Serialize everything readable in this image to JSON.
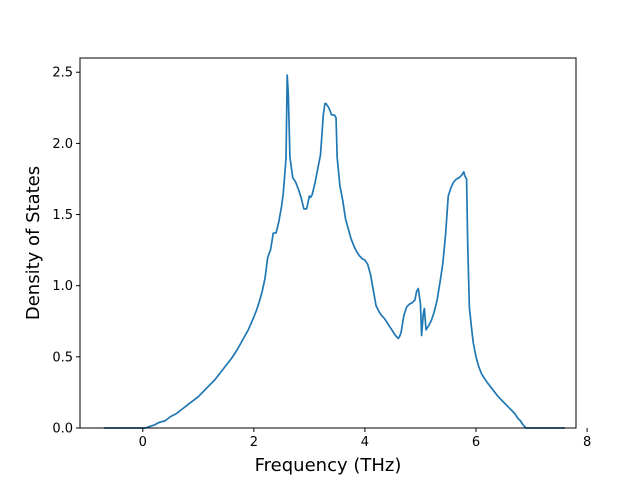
{
  "chart_data": {
    "type": "line",
    "title": "",
    "xlabel": "Frequency (THz)",
    "ylabel": "Density of States",
    "xlim": [
      -1.13,
      7.8
    ],
    "ylim": [
      0.0,
      2.6
    ],
    "xticks": [
      0,
      2,
      4,
      6,
      8
    ],
    "xtick_labels": [
      "0",
      "2",
      "4",
      "6",
      "8"
    ],
    "yticks": [
      0.0,
      0.5,
      1.0,
      1.5,
      2.0,
      2.5
    ],
    "ytick_labels": [
      "0.0",
      "0.5",
      "1.0",
      "1.5",
      "2.0",
      "2.5"
    ],
    "grid": false,
    "legend": "none",
    "series": [
      {
        "color": "#1f77b4",
        "x": [
          -0.7,
          0.05,
          0.12,
          0.2,
          0.3,
          0.4,
          0.5,
          0.6,
          0.7,
          0.8,
          0.9,
          1.0,
          1.1,
          1.2,
          1.3,
          1.4,
          1.5,
          1.6,
          1.7,
          1.8,
          1.9,
          2.0,
          2.05,
          2.1,
          2.15,
          2.2,
          2.25,
          2.3,
          2.35,
          2.4,
          2.45,
          2.5,
          2.53,
          2.56,
          2.58,
          2.6,
          2.62,
          2.65,
          2.7,
          2.75,
          2.8,
          2.85,
          2.9,
          2.95,
          3.0,
          3.02,
          3.05,
          3.1,
          3.15,
          3.2,
          3.25,
          3.28,
          3.3,
          3.35,
          3.4,
          3.45,
          3.48,
          3.5,
          3.55,
          3.6,
          3.65,
          3.7,
          3.75,
          3.8,
          3.85,
          3.9,
          3.95,
          4.0,
          4.05,
          4.1,
          4.15,
          4.2,
          4.25,
          4.3,
          4.35,
          4.4,
          4.45,
          4.5,
          4.55,
          4.6,
          4.62,
          4.65,
          4.7,
          4.75,
          4.8,
          4.85,
          4.9,
          4.93,
          4.96,
          5.0,
          5.02,
          5.05,
          5.07,
          5.1,
          5.15,
          5.2,
          5.25,
          5.3,
          5.35,
          5.4,
          5.45,
          5.5,
          5.55,
          5.6,
          5.65,
          5.7,
          5.75,
          5.78,
          5.8,
          5.83,
          5.85,
          5.88,
          5.92,
          5.95,
          6.0,
          6.05,
          6.1,
          6.2,
          6.3,
          6.4,
          6.5,
          6.6,
          6.7,
          6.75,
          6.8,
          6.85,
          6.9,
          6.92,
          7.0,
          7.6
        ],
        "y": [
          0.0,
          0.0,
          0.01,
          0.02,
          0.04,
          0.05,
          0.08,
          0.1,
          0.13,
          0.16,
          0.19,
          0.22,
          0.26,
          0.3,
          0.34,
          0.39,
          0.44,
          0.49,
          0.55,
          0.62,
          0.69,
          0.78,
          0.83,
          0.89,
          0.96,
          1.05,
          1.2,
          1.25,
          1.37,
          1.37,
          1.45,
          1.56,
          1.65,
          1.8,
          1.9,
          2.48,
          2.35,
          1.9,
          1.76,
          1.73,
          1.68,
          1.62,
          1.54,
          1.54,
          1.63,
          1.62,
          1.64,
          1.72,
          1.82,
          1.92,
          2.2,
          2.28,
          2.28,
          2.25,
          2.2,
          2.2,
          2.18,
          1.9,
          1.7,
          1.6,
          1.47,
          1.4,
          1.33,
          1.28,
          1.24,
          1.21,
          1.19,
          1.18,
          1.15,
          1.08,
          0.97,
          0.86,
          0.82,
          0.79,
          0.77,
          0.74,
          0.71,
          0.68,
          0.65,
          0.63,
          0.64,
          0.67,
          0.79,
          0.85,
          0.87,
          0.88,
          0.9,
          0.96,
          0.98,
          0.87,
          0.65,
          0.8,
          0.84,
          0.69,
          0.72,
          0.76,
          0.82,
          0.9,
          1.02,
          1.15,
          1.35,
          1.63,
          1.69,
          1.73,
          1.75,
          1.76,
          1.78,
          1.8,
          1.77,
          1.75,
          1.3,
          0.85,
          0.7,
          0.6,
          0.5,
          0.43,
          0.38,
          0.32,
          0.27,
          0.22,
          0.18,
          0.14,
          0.1,
          0.07,
          0.05,
          0.02,
          0.0,
          0.0,
          0.0,
          0.0
        ]
      }
    ]
  }
}
